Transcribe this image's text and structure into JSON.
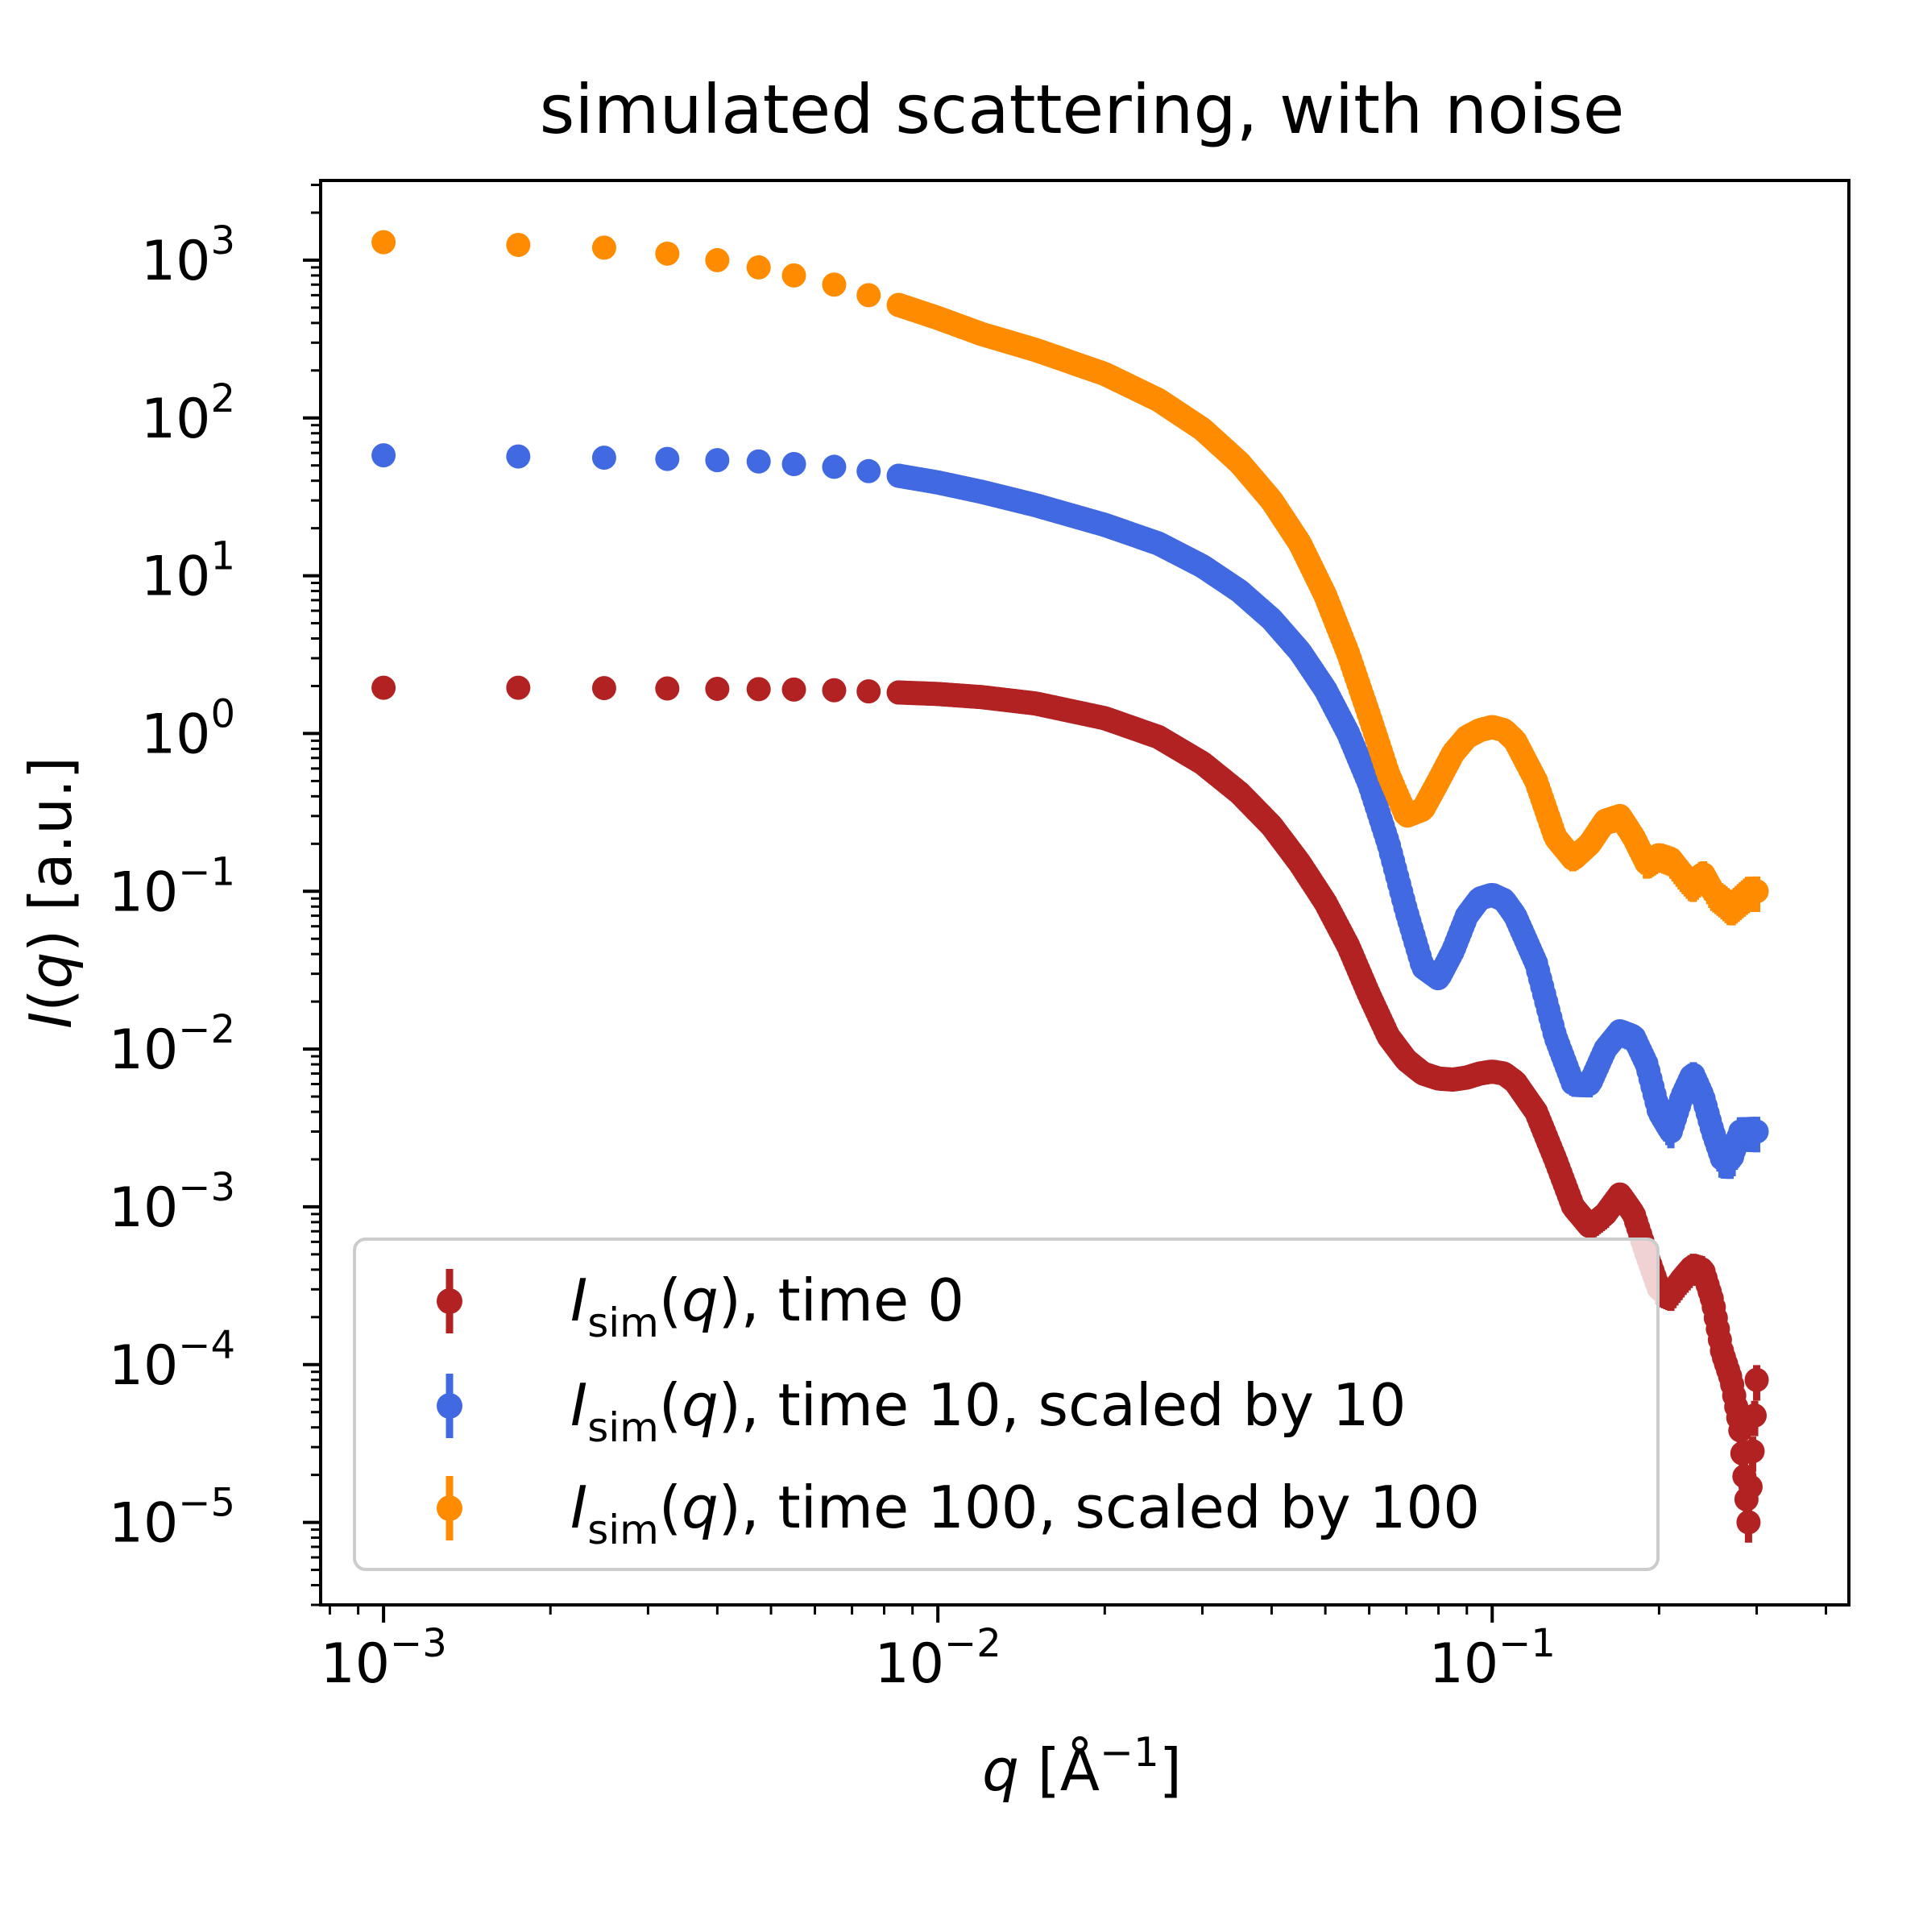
{
  "chart_data": {
    "type": "scatter",
    "title": "simulated scattering, with noise",
    "xlabel": {
      "var": "q",
      "unit": " [Å",
      "exp": "−1",
      "close": "]"
    },
    "ylabel": {
      "func": "I",
      "arg": "q",
      "unit": " [a.u.]"
    },
    "xscale": "log",
    "yscale": "log",
    "xlim": [
      0.00077,
      0.44
    ],
    "ylim": [
      3e-06,
      3200
    ],
    "x_ticks": [
      {
        "value": 0.001,
        "base": "10",
        "exp": "−3"
      },
      {
        "value": 0.01,
        "base": "10",
        "exp": "−2"
      },
      {
        "value": 0.1,
        "base": "10",
        "exp": "−1"
      }
    ],
    "y_ticks": [
      {
        "value": 1000,
        "base": "10",
        "exp": "3"
      },
      {
        "value": 100,
        "base": "10",
        "exp": "2"
      },
      {
        "value": 10,
        "base": "10",
        "exp": "1"
      },
      {
        "value": 1,
        "base": "10",
        "exp": "0"
      },
      {
        "value": 0.1,
        "base": "10",
        "exp": "−1"
      },
      {
        "value": 0.01,
        "base": "10",
        "exp": "−2"
      },
      {
        "value": 0.001,
        "base": "10",
        "exp": "−3"
      },
      {
        "value": 0.0001,
        "base": "10",
        "exp": "−4"
      },
      {
        "value": 1e-05,
        "base": "10",
        "exp": "−5"
      }
    ],
    "grid": false,
    "legend_position": "lower-left",
    "x": [
      0.001,
      0.00175,
      0.0025,
      0.00325,
      0.004,
      0.00475,
      0.0055,
      0.0065,
      0.0075,
      0.0085,
      0.01,
      0.012,
      0.015,
      0.02,
      0.025,
      0.03,
      0.035,
      0.04,
      0.045,
      0.05,
      0.055,
      0.06,
      0.065,
      0.07,
      0.075,
      0.08,
      0.085,
      0.09,
      0.095,
      0.1,
      0.105,
      0.11,
      0.12,
      0.13,
      0.14,
      0.15,
      0.16,
      0.17,
      0.18,
      0.19,
      0.2,
      0.21,
      0.22,
      0.23,
      0.24,
      0.25,
      0.26,
      0.27,
      0.28,
      0.29,
      0.3
    ],
    "series": [
      {
        "name": "time 0",
        "legend": {
          "sym": "I",
          "sub": "sim",
          "arg": "q",
          "text": ", time 0"
        },
        "color": "#b22222",
        "values": [
          1.95,
          1.95,
          1.94,
          1.93,
          1.92,
          1.91,
          1.9,
          1.88,
          1.85,
          1.82,
          1.78,
          1.7,
          1.55,
          1.25,
          0.95,
          0.65,
          0.42,
          0.26,
          0.15,
          0.085,
          0.045,
          0.022,
          0.012,
          0.0085,
          0.007,
          0.0065,
          0.0064,
          0.0066,
          0.007,
          0.0072,
          0.007,
          0.0062,
          0.004,
          0.002,
          0.001,
          0.00075,
          0.0009,
          0.0012,
          0.0009,
          0.0005,
          0.0003,
          0.00028,
          0.00035,
          0.00042,
          0.0004,
          0.00025,
          0.00012,
          8e-05,
          4e-05,
          1e-05,
          8e-05
        ]
      },
      {
        "name": "time 10",
        "legend": {
          "sym": "I",
          "sub": "sim",
          "arg": "q",
          "text": ", time 10, scaled by 10"
        },
        "color": "#4169e1",
        "values": [
          58,
          57,
          56,
          55,
          54,
          53,
          51,
          49,
          46,
          43,
          39,
          34,
          28,
          21,
          16,
          11.5,
          8,
          5.3,
          3.3,
          1.9,
          1.0,
          0.48,
          0.2,
          0.075,
          0.033,
          0.028,
          0.042,
          0.07,
          0.09,
          0.095,
          0.088,
          0.07,
          0.035,
          0.012,
          0.006,
          0.006,
          0.01,
          0.013,
          0.012,
          0.008,
          0.004,
          0.003,
          0.005,
          0.007,
          0.005,
          0.003,
          0.002,
          0.002,
          0.003,
          0.003,
          0.003
        ]
      },
      {
        "name": "time 100",
        "legend": {
          "sym": "I",
          "sub": "sim",
          "arg": "q",
          "text": ", time 100, scaled by 100"
        },
        "color": "#ff8c00",
        "values": [
          1300,
          1250,
          1200,
          1100,
          1000,
          900,
          800,
          700,
          600,
          520,
          430,
          340,
          270,
          190,
          130,
          85,
          52,
          30,
          16,
          7.5,
          3.2,
          1.3,
          0.55,
          0.3,
          0.33,
          0.5,
          0.75,
          0.95,
          1.05,
          1.1,
          1.05,
          0.9,
          0.5,
          0.22,
          0.16,
          0.2,
          0.28,
          0.3,
          0.22,
          0.15,
          0.17,
          0.16,
          0.13,
          0.11,
          0.13,
          0.1,
          0.09,
          0.08,
          0.09,
          0.1,
          0.1
        ]
      }
    ]
  }
}
